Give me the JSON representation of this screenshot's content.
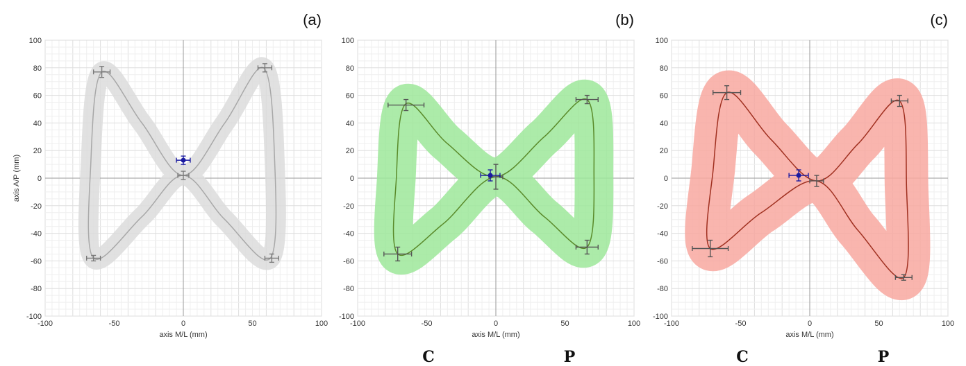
{
  "chart_data": [
    {
      "type": "line",
      "panel_label": "(a)",
      "xlabel": "axis M/L (mm)",
      "ylabel": "axis A/P (mm)",
      "xlim": [
        -100,
        100
      ],
      "ylim": [
        -100,
        100
      ],
      "xticks": [
        "-100",
        "-50",
        "0",
        "50",
        "100"
      ],
      "yticks": [
        "100",
        "80",
        "60",
        "40",
        "20",
        "0",
        "-20",
        "-40",
        "-60",
        "-80",
        "-100"
      ],
      "grid": true,
      "colors": {
        "line": "#a8a8a8",
        "band": "#dcdcdc",
        "errorbar": "#7a7a7a",
        "center": "#1a1aa0"
      },
      "series": [
        {
          "x": [
            0,
            30,
            58,
            66,
            63,
            30,
            0,
            -30,
            -65,
            -67,
            -59,
            -30,
            0
          ],
          "y": [
            2,
            40,
            80,
            15,
            -58,
            -30,
            2,
            -28,
            -58,
            10,
            77,
            40,
            2
          ],
          "band_width": [
            6,
            7,
            9,
            7,
            8,
            7,
            6,
            7,
            8,
            7,
            9,
            7,
            6
          ]
        }
      ],
      "points": [
        {
          "x": -59,
          "y": 77,
          "xerr": 6,
          "yerr": 4
        },
        {
          "x": 59,
          "y": 80,
          "xerr": 5,
          "yerr": 3
        },
        {
          "x": 0,
          "y": 2,
          "xerr": 4,
          "yerr": 3
        },
        {
          "x": -65,
          "y": -58,
          "xerr": 5,
          "yerr": 2
        },
        {
          "x": 64,
          "y": -58,
          "xerr": 5,
          "yerr": 3
        }
      ],
      "center": {
        "x": 0,
        "y": 13,
        "xerr": 5,
        "yerr": 3
      },
      "bottom_labels": []
    },
    {
      "type": "line",
      "panel_label": "(b)",
      "xlabel": "axis M/L (mm)",
      "ylabel": "",
      "xlim": [
        -100,
        100
      ],
      "ylim": [
        -100,
        100
      ],
      "xticks": [
        "-100",
        "-50",
        "0",
        "50",
        "100"
      ],
      "yticks": [
        "100",
        "80",
        "60",
        "40",
        "20",
        "0",
        "-20",
        "-40",
        "-60",
        "-80",
        "-100"
      ],
      "grid": true,
      "colors": {
        "line": "#5a8a2a",
        "band": "#9ee89a",
        "errorbar": "#555555",
        "center": "#1a1aa0"
      },
      "series": [
        {
          "x": [
            0,
            35,
            66,
            71,
            66,
            35,
            0,
            -38,
            -71,
            -72,
            -65,
            -35,
            0
          ],
          "y": [
            1,
            30,
            57,
            5,
            -50,
            -28,
            1,
            -33,
            -55,
            0,
            54,
            25,
            1
          ],
          "band_width": [
            10,
            14,
            17,
            14,
            17,
            14,
            10,
            14,
            17,
            14,
            17,
            14,
            10
          ]
        }
      ],
      "points": [
        {
          "x": -65,
          "y": 53,
          "xerr": 13,
          "yerr": 4
        },
        {
          "x": 66,
          "y": 57,
          "xerr": 8,
          "yerr": 3
        },
        {
          "x": 0,
          "y": 1,
          "xerr": 5,
          "yerr": 9
        },
        {
          "x": -71,
          "y": -55,
          "xerr": 10,
          "yerr": 5
        },
        {
          "x": 66,
          "y": -50,
          "xerr": 8,
          "yerr": 5
        }
      ],
      "center": {
        "x": -4,
        "y": 2,
        "xerr": 7,
        "yerr": 4
      },
      "bottom_labels": [
        "C",
        "P"
      ]
    },
    {
      "type": "line",
      "panel_label": "(c)",
      "xlabel": "axis M/L (mm)",
      "ylabel": "",
      "xlim": [
        -100,
        100
      ],
      "ylim": [
        -100,
        100
      ],
      "xticks": [
        "-100",
        "-50",
        "0",
        "50",
        "100"
      ],
      "yticks": [
        "100",
        "80",
        "60",
        "40",
        "20",
        "0",
        "-20",
        "-40",
        "-60",
        "-80",
        "-100"
      ],
      "grid": true,
      "colors": {
        "line": "#a03020",
        "band": "#f8a8a0",
        "errorbar": "#555555",
        "center": "#1a1aa0"
      },
      "series": [
        {
          "x": [
            5,
            35,
            65,
            70,
            68,
            35,
            5,
            -35,
            -72,
            -70,
            -60,
            -28,
            5
          ],
          "y": [
            -2,
            25,
            56,
            -5,
            -72,
            -38,
            -2,
            -25,
            -51,
            5,
            62,
            28,
            -2
          ],
          "band_width": [
            12,
            16,
            19,
            17,
            21,
            16,
            12,
            15,
            16,
            15,
            19,
            15,
            12
          ]
        }
      ],
      "points": [
        {
          "x": -60,
          "y": 62,
          "xerr": 10,
          "yerr": 5
        },
        {
          "x": 65,
          "y": 56,
          "xerr": 6,
          "yerr": 4
        },
        {
          "x": 5,
          "y": -2,
          "xerr": 5,
          "yerr": 4
        },
        {
          "x": -72,
          "y": -51,
          "xerr": 13,
          "yerr": 6
        },
        {
          "x": 68,
          "y": -72,
          "xerr": 6,
          "yerr": 2
        }
      ],
      "center": {
        "x": -8,
        "y": 2,
        "xerr": 7,
        "yerr": 4
      },
      "bottom_labels": [
        "C",
        "P"
      ]
    }
  ]
}
